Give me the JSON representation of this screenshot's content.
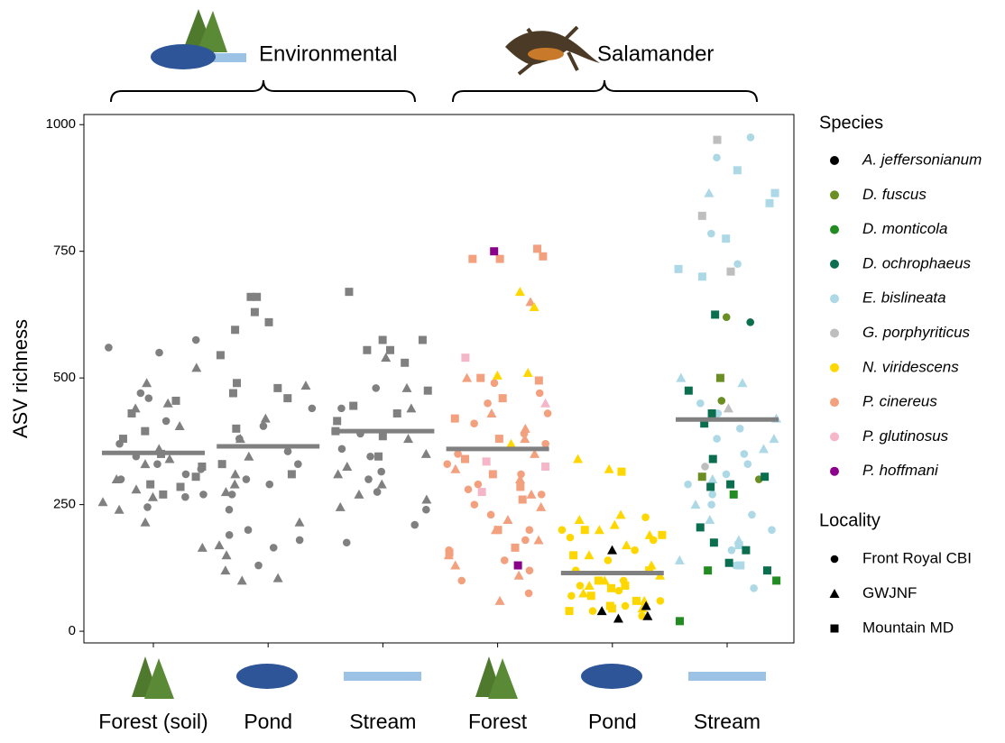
{
  "chart_data": {
    "type": "strip",
    "y_label": "ASV richness",
    "ylim": [
      -23,
      1020
    ],
    "yticks": [
      0,
      250,
      500,
      750,
      1000
    ],
    "mean_color": "#808080",
    "species_title": "Species",
    "species": [
      {
        "name": "A. jeffersonianum",
        "color": "#000000"
      },
      {
        "name": "D. fuscus",
        "color": "#6b8e23"
      },
      {
        "name": "D. monticola",
        "color": "#228b22"
      },
      {
        "name": "D. ochrophaeus",
        "color": "#0b6e4f"
      },
      {
        "name": "E. bislineata",
        "color": "#add8e6"
      },
      {
        "name": "G. porphyriticus",
        "color": "#bebebe"
      },
      {
        "name": "N. viridescens",
        "color": "#ffd700"
      },
      {
        "name": "P. cinereus",
        "color": "#f2a07e"
      },
      {
        "name": "P. glutinosus",
        "color": "#f4b6c8"
      },
      {
        "name": "P. hoffmani",
        "color": "#8b008b"
      }
    ],
    "locality_title": "Locality",
    "localities": [
      {
        "name": "Front Royal CBI",
        "shape": "circle"
      },
      {
        "name": "GWJNF",
        "shape": "triangle"
      },
      {
        "name": "Mountain MD",
        "shape": "square"
      }
    ],
    "groups": [
      {
        "name": "Environmental",
        "categories": [
          {
            "name": "Forest (soil)",
            "mean": 352,
            "series": [
              {
                "locality": "Front Royal CBI",
                "color": "#808080",
                "values": [
                  575,
                  560,
                  550,
                  470,
                  460,
                  415,
                  370,
                  345,
                  330,
                  320,
                  310,
                  300,
                  270,
                  265,
                  245
                ]
              },
              {
                "locality": "GWJNF",
                "color": "#808080",
                "values": [
                  520,
                  490,
                  450,
                  440,
                  405,
                  360,
                  340,
                  330,
                  300,
                  280,
                  265,
                  255,
                  240,
                  215,
                  165
                ]
              },
              {
                "locality": "Mountain MD",
                "color": "#808080",
                "values": [
                  455,
                  430,
                  395,
                  380,
                  350,
                  325,
                  305,
                  290,
                  285,
                  270
                ]
              }
            ]
          },
          {
            "name": "Pond",
            "mean": 365,
            "series": [
              {
                "locality": "Front Royal CBI",
                "color": "#808080",
                "values": [
                  440,
                  405,
                  380,
                  355,
                  330,
                  300,
                  290,
                  270,
                  240,
                  200,
                  190,
                  180,
                  165,
                  130
                ]
              },
              {
                "locality": "GWJNF",
                "color": "#808080",
                "values": [
                  485,
                  420,
                  380,
                  345,
                  310,
                  290,
                  275,
                  215,
                  170,
                  150,
                  120,
                  105,
                  100
                ]
              },
              {
                "locality": "Mountain MD",
                "color": "#808080",
                "values": [
                  660,
                  660,
                  630,
                  610,
                  595,
                  545,
                  490,
                  480,
                  470,
                  460,
                  400,
                  330,
                  310
                ]
              }
            ]
          },
          {
            "name": "Stream",
            "mean": 395,
            "series": [
              {
                "locality": "Front Royal CBI",
                "color": "#808080",
                "values": [
                  480,
                  440,
                  390,
                  360,
                  345,
                  315,
                  300,
                  275,
                  240,
                  210,
                  175
                ]
              },
              {
                "locality": "GWJNF",
                "color": "#808080",
                "values": [
                  540,
                  480,
                  440,
                  380,
                  350,
                  325,
                  310,
                  290,
                  270,
                  260,
                  245
                ]
              },
              {
                "locality": "Mountain MD",
                "color": "#808080",
                "values": [
                  670,
                  575,
                  575,
                  555,
                  555,
                  530,
                  475,
                  445,
                  430,
                  415,
                  395,
                  385,
                  345
                ]
              }
            ]
          }
        ]
      },
      {
        "name": "Salamander",
        "categories": [
          {
            "name": "Forest",
            "mean": 360,
            "series": [
              {
                "species": "P. cinereus",
                "locality": "Front Royal CBI",
                "values": [
                  490,
                  470,
                  450,
                  430,
                  410,
                  390,
                  370,
                  350,
                  330,
                  310,
                  290,
                  280,
                  270,
                  250,
                  230,
                  200,
                  180,
                  160,
                  140,
                  120,
                  100,
                  75
                ]
              },
              {
                "species": "P. cinereus",
                "locality": "GWJNF",
                "values": [
                  650,
                  500,
                  430,
                  400,
                  380,
                  350,
                  320,
                  300,
                  270,
                  245,
                  220,
                  200,
                  180,
                  150,
                  130,
                  110,
                  60
                ]
              },
              {
                "species": "P. cinereus",
                "locality": "Mountain MD",
                "values": [
                  755,
                  740,
                  735,
                  735,
                  500,
                  495,
                  460,
                  420,
                  380,
                  340,
                  310,
                  285,
                  260,
                  200,
                  165,
                  155
                ]
              },
              {
                "species": "N. viridescens",
                "locality": "GWJNF",
                "values": [
                  670,
                  640,
                  510,
                  505,
                  370
                ]
              },
              {
                "species": "P. glutinosus",
                "locality": "Mountain MD",
                "values": [
                  540,
                  335,
                  325,
                  275
                ]
              },
              {
                "species": "P. glutinosus",
                "locality": "GWJNF",
                "values": [
                  450
                ]
              },
              {
                "species": "P. hoffmani",
                "locality": "Mountain MD",
                "values": [
                  750,
                  130
                ]
              }
            ]
          },
          {
            "name": "Pond",
            "mean": 115,
            "series": [
              {
                "species": "N. viridescens",
                "locality": "Front Royal CBI",
                "values": [
                  225,
                  200,
                  185,
                  180,
                  160,
                  140,
                  120,
                  100,
                  90,
                  80,
                  70,
                  60,
                  50,
                  40,
                  30
                ]
              },
              {
                "species": "N. viridescens",
                "locality": "GWJNF",
                "values": [
                  340,
                  320,
                  230,
                  220,
                  210,
                  200,
                  190,
                  170,
                  150,
                  130,
                  110,
                  100,
                  90,
                  75,
                  60,
                  45
                ]
              },
              {
                "species": "N. viridescens",
                "locality": "Mountain MD",
                "values": [
                  315,
                  200,
                  190,
                  150,
                  120,
                  100,
                  90,
                  85,
                  70,
                  60,
                  50,
                  45,
                  40
                ]
              },
              {
                "species": "A. jeffersonianum",
                "locality": "GWJNF",
                "values": [
                  160,
                  50,
                  40,
                  30,
                  25
                ]
              }
            ]
          },
          {
            "name": "Stream",
            "mean": 418,
            "series": [
              {
                "species": "E. bislineata",
                "locality": "Front Royal CBI",
                "values": [
                  975,
                  935,
                  785,
                  725,
                  450,
                  430,
                  400,
                  380,
                  350,
                  330,
                  310,
                  290,
                  270,
                  250,
                  230,
                  200,
                  160,
                  130,
                  85
                ]
              },
              {
                "species": "E. bislineata",
                "locality": "GWJNF",
                "values": [
                  865,
                  490,
                  500,
                  420,
                  380,
                  360,
                  300,
                  250,
                  220,
                  180,
                  140
                ]
              },
              {
                "species": "E. bislineata",
                "locality": "Mountain MD",
                "values": [
                  910,
                  865,
                  845,
                  775,
                  715,
                  700,
                  170,
                  130
                ]
              },
              {
                "species": "G. porphyriticus",
                "locality": "Mountain MD",
                "values": [
                  970,
                  820,
                  710
                ]
              },
              {
                "species": "G. porphyriticus",
                "locality": "Front Royal CBI",
                "values": [
                  325
                ]
              },
              {
                "species": "G. porphyriticus",
                "locality": "GWJNF",
                "values": [
                  440
                ]
              },
              {
                "species": "D. fuscus",
                "locality": "Front Royal CBI",
                "values": [
                  620,
                  455,
                  300
                ]
              },
              {
                "species": "D. fuscus",
                "locality": "Mountain MD",
                "values": [
                  500,
                  305
                ]
              },
              {
                "species": "D. ochrophaeus",
                "locality": "Mountain MD",
                "values": [
                  625,
                  475,
                  430,
                  410,
                  340,
                  305,
                  290,
                  285,
                  205,
                  175,
                  160,
                  135,
                  120
                ]
              },
              {
                "species": "D. ochrophaeus",
                "locality": "Front Royal CBI",
                "values": [
                  610
                ]
              },
              {
                "species": "D. monticola",
                "locality": "Mountain MD",
                "values": [
                  270,
                  120,
                  100,
                  20
                ]
              }
            ]
          }
        ]
      }
    ]
  }
}
